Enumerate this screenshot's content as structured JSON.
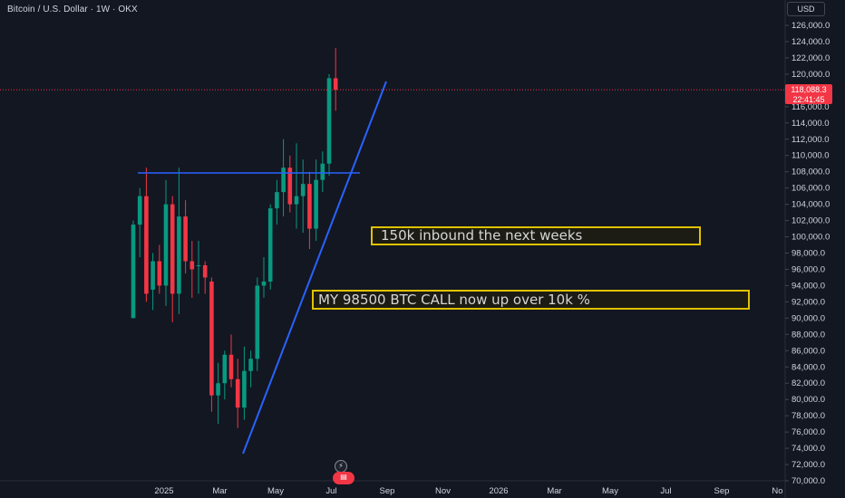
{
  "header": {
    "title": "Bitcoin / U.S. Dollar · 1W · OKX",
    "currency_button": "USD"
  },
  "annotations": [
    "150k inbound the next weeks",
    "MY 98500 BTC CALL now up over 10k %"
  ],
  "price_tag": {
    "price": "118,088.3",
    "countdown": "22:41:45",
    "color": "#f23645"
  },
  "colors": {
    "background": "#131722",
    "up": "#089981",
    "down": "#f23645",
    "drawing": "#2962ff",
    "annotation_border": "#e0c200"
  },
  "event_icons": [
    "lightning-icon",
    "earnings-icon"
  ],
  "chart_data": {
    "type": "candlestick",
    "title": "Bitcoin / U.S. Dollar · 1W · OKX",
    "ylim": [
      70000,
      126000
    ],
    "yticks": [
      "126,000.0",
      "124,000.0",
      "122,000.0",
      "120,000.0",
      "118,000.0",
      "116,000.0",
      "114,000.0",
      "112,000.0",
      "110,000.0",
      "108,000.0",
      "106,000.0",
      "104,000.0",
      "102,000.0",
      "100,000.0",
      "98,000.0",
      "96,000.0",
      "94,000.0",
      "92,000.0",
      "90,000.0",
      "88,000.0",
      "86,000.0",
      "84,000.0",
      "82,000.0",
      "80,000.0",
      "78,000.0",
      "76,000.0",
      "74,000.0",
      "72,000.0",
      "70,000.0"
    ],
    "xticks": [
      "2025",
      "Mar",
      "May",
      "Jul",
      "Sep",
      "Nov",
      "2026",
      "Mar",
      "May",
      "Jul",
      "Sep",
      "No"
    ],
    "last_price": 118088.3,
    "candles": [
      {
        "o": 90000,
        "h": 102000,
        "l": 90000,
        "c": 101500
      },
      {
        "o": 101500,
        "h": 106000,
        "l": 97500,
        "c": 105000
      },
      {
        "o": 105000,
        "h": 108500,
        "l": 92000,
        "c": 93000
      },
      {
        "o": 93500,
        "h": 98000,
        "l": 91000,
        "c": 97000
      },
      {
        "o": 97000,
        "h": 99000,
        "l": 93000,
        "c": 94000
      },
      {
        "o": 94000,
        "h": 107000,
        "l": 91500,
        "c": 104000
      },
      {
        "o": 104000,
        "h": 105000,
        "l": 89500,
        "c": 93000
      },
      {
        "o": 93000,
        "h": 108500,
        "l": 90500,
        "c": 102500
      },
      {
        "o": 102500,
        "h": 104500,
        "l": 95500,
        "c": 97000
      },
      {
        "o": 97000,
        "h": 99500,
        "l": 92500,
        "c": 96000
      },
      {
        "o": 96500,
        "h": 99500,
        "l": 93000,
        "c": 96500
      },
      {
        "o": 96500,
        "h": 97000,
        "l": 93000,
        "c": 95000
      },
      {
        "o": 94500,
        "h": 95000,
        "l": 78500,
        "c": 80500
      },
      {
        "o": 80500,
        "h": 84500,
        "l": 77000,
        "c": 82000
      },
      {
        "o": 82000,
        "h": 86000,
        "l": 80000,
        "c": 85500
      },
      {
        "o": 85500,
        "h": 88000,
        "l": 81500,
        "c": 82500
      },
      {
        "o": 82500,
        "h": 85000,
        "l": 76500,
        "c": 79000
      },
      {
        "o": 79000,
        "h": 86500,
        "l": 77500,
        "c": 83500
      },
      {
        "o": 83500,
        "h": 86000,
        "l": 81500,
        "c": 85000
      },
      {
        "o": 85000,
        "h": 95000,
        "l": 83500,
        "c": 94000
      },
      {
        "o": 94000,
        "h": 97500,
        "l": 92500,
        "c": 94500
      },
      {
        "o": 94500,
        "h": 104000,
        "l": 93500,
        "c": 103500
      },
      {
        "o": 103500,
        "h": 107000,
        "l": 101500,
        "c": 105500
      },
      {
        "o": 105500,
        "h": 112000,
        "l": 102500,
        "c": 108500
      },
      {
        "o": 108500,
        "h": 110000,
        "l": 103000,
        "c": 104000
      },
      {
        "o": 104000,
        "h": 111500,
        "l": 101000,
        "c": 105000
      },
      {
        "o": 105000,
        "h": 109500,
        "l": 100500,
        "c": 106500
      },
      {
        "o": 106500,
        "h": 108000,
        "l": 98500,
        "c": 101000
      },
      {
        "o": 101000,
        "h": 109500,
        "l": 99500,
        "c": 107000
      },
      {
        "o": 107000,
        "h": 110500,
        "l": 105500,
        "c": 109000
      },
      {
        "o": 109000,
        "h": 120000,
        "l": 107500,
        "c": 119500
      },
      {
        "o": 119500,
        "h": 123200,
        "l": 115500,
        "c": 118088
      }
    ]
  }
}
